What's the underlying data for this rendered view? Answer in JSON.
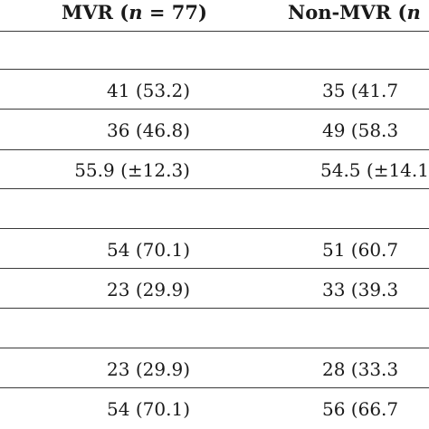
{
  "header": {
    "mvr_prefix": "MVR (",
    "mvr_n": "n",
    "mvr_suffix": " = 77)",
    "non_mvr_prefix": "Non-MVR (",
    "non_mvr_n": "n"
  },
  "rows": [
    {
      "mvr": "",
      "non_mvr": ""
    },
    {
      "mvr": "",
      "non_mvr": ""
    },
    {
      "mvr": "41 (53.2)",
      "non_mvr": "35 (41.7"
    },
    {
      "mvr": "36 (46.8)",
      "non_mvr": "49 (58.3"
    },
    {
      "mvr": "55.9 (±12.3)",
      "non_mvr": "54.5 (±14.1"
    },
    {
      "mvr": "",
      "non_mvr": ""
    },
    {
      "mvr": "54 (70.1)",
      "non_mvr": "51 (60.7"
    },
    {
      "mvr": "23 (29.9)",
      "non_mvr": "33 (39.3"
    },
    {
      "mvr": "",
      "non_mvr": ""
    },
    {
      "mvr": "23 (29.9)",
      "non_mvr": "28 (33.3"
    },
    {
      "mvr": "54 (70.1)",
      "non_mvr": "56 (66.7"
    }
  ]
}
